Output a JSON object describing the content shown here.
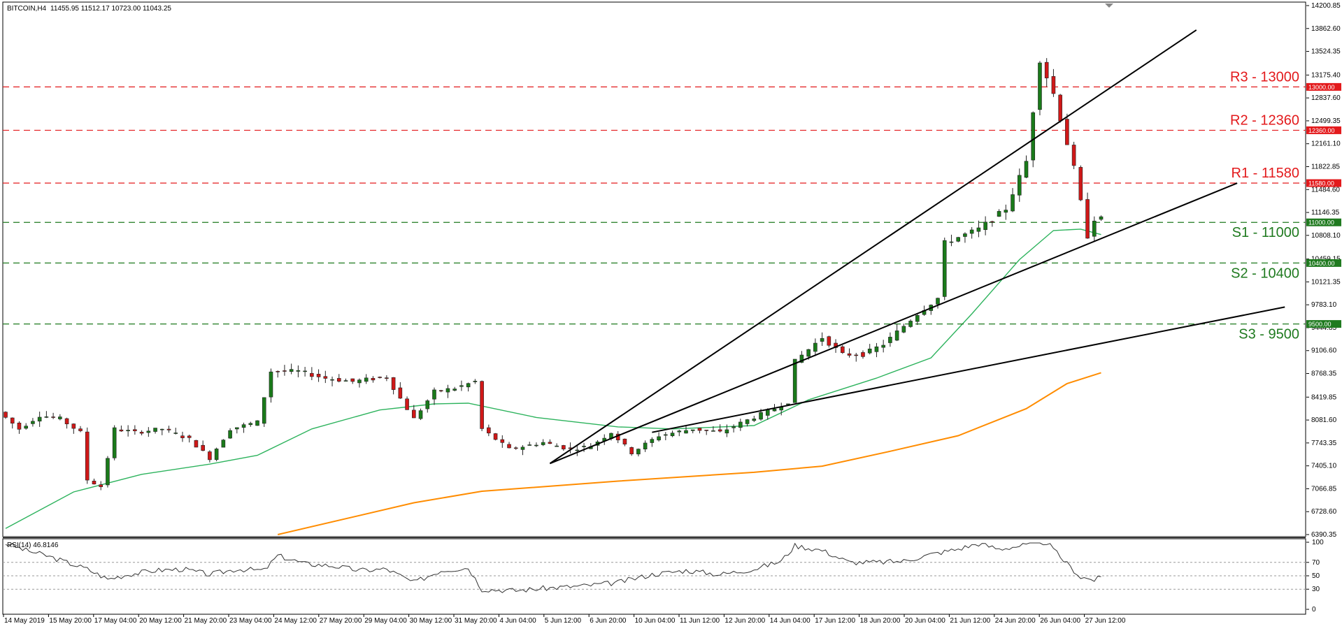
{
  "header": {
    "symbol": "BITCOIN,H4",
    "ohlc": "11455.95 11512.17 10723.00 11043.25"
  },
  "rsi_header": "RSI(14) 46.8146",
  "colors": {
    "resistance": "#e31a1c",
    "support": "#1f7a1f",
    "bull_candle": "#1a7a1a",
    "bear_candle": "#d01818",
    "ma_fast": "#2db35d",
    "ma_slow": "#ff8c00",
    "trendline": "#000000",
    "rsi_line": "#333333"
  },
  "chart_data": [
    {
      "type": "candlestick",
      "title": "",
      "price_axis": {
        "min": 6390.35,
        "max": 14200.85,
        "ticks": [
          "14200.85",
          "13862.60",
          "13524.35",
          "13175.40",
          "12837.60",
          "12499.35",
          "12161.10",
          "11822.85",
          "11484.60",
          "11146.35",
          "10808.10",
          "10459.15",
          "10121.35",
          "9783.10",
          "9444.85",
          "9106.60",
          "8768.35",
          "8419.85",
          "8081.60",
          "7743.35",
          "7405.10",
          "7066.85",
          "6728.60",
          "6390.35"
        ]
      },
      "time_axis_labels": [
        "14 May 2019",
        "15 May 20:00",
        "17 May 04:00",
        "20 May 12:00",
        "21 May 20:00",
        "23 May 04:00",
        "24 May 12:00",
        "27 May 20:00",
        "29 May 04:00",
        "30 May 12:00",
        "31 May 20:00",
        "4 Jun 04:00",
        "5 Jun 12:00",
        "6 Jun 20:00",
        "10 Jun 04:00",
        "11 Jun 12:00",
        "12 Jun 20:00",
        "14 Jun 04:00",
        "17 Jun 12:00",
        "18 Jun 20:00",
        "20 Jun 04:00",
        "21 Jun 12:00",
        "24 Jun 20:00",
        "26 Jun 04:00",
        "27 Jun 12:00"
      ],
      "price_path": [
        [
          0,
          8200
        ],
        [
          3,
          7950
        ],
        [
          6,
          8150
        ],
        [
          9,
          8100
        ],
        [
          12,
          7900
        ],
        [
          13,
          7200
        ],
        [
          15,
          7100
        ],
        [
          17,
          7950
        ],
        [
          20,
          7900
        ],
        [
          24,
          7950
        ],
        [
          28,
          7800
        ],
        [
          31,
          7520
        ],
        [
          34,
          7950
        ],
        [
          38,
          8050
        ],
        [
          40,
          8800
        ],
        [
          44,
          8800
        ],
        [
          48,
          8700
        ],
        [
          52,
          8650
        ],
        [
          57,
          8720
        ],
        [
          59,
          8400
        ],
        [
          61,
          8100
        ],
        [
          64,
          8500
        ],
        [
          67,
          8550
        ],
        [
          70,
          8650
        ],
        [
          71,
          7950
        ],
        [
          75,
          7650
        ],
        [
          80,
          7750
        ],
        [
          84,
          7650
        ],
        [
          87,
          7700
        ],
        [
          90,
          7900
        ],
        [
          93,
          7600
        ],
        [
          97,
          7850
        ],
        [
          102,
          7950
        ],
        [
          106,
          7900
        ],
        [
          110,
          8080
        ],
        [
          114,
          8250
        ],
        [
          116,
          8350
        ],
        [
          117,
          8950
        ],
        [
          121,
          9300
        ],
        [
          124,
          9050
        ],
        [
          127,
          9050
        ],
        [
          130,
          9200
        ],
        [
          135,
          9650
        ],
        [
          138,
          9880
        ],
        [
          139,
          10700
        ],
        [
          144,
          10900
        ],
        [
          148,
          11200
        ],
        [
          151,
          11900
        ],
        [
          153,
          13400
        ],
        [
          155,
          12900
        ],
        [
          158,
          11800
        ],
        [
          160,
          10800
        ],
        [
          161,
          11050
        ]
      ],
      "moving_averages": [
        {
          "period": "fast",
          "points": [
            [
              0,
              6480
            ],
            [
              10,
              7020
            ],
            [
              20,
              7280
            ],
            [
              30,
              7430
            ],
            [
              37,
              7560
            ],
            [
              45,
              7950
            ],
            [
              55,
              8230
            ],
            [
              63,
              8320
            ],
            [
              68,
              8330
            ],
            [
              78,
              8120
            ],
            [
              90,
              7980
            ],
            [
              98,
              7950
            ],
            [
              110,
              8000
            ],
            [
              118,
              8380
            ],
            [
              128,
              8700
            ],
            [
              136,
              9000
            ],
            [
              142,
              9650
            ],
            [
              149,
              10450
            ],
            [
              154,
              10880
            ],
            [
              158,
              10900
            ],
            [
              161,
              10820
            ]
          ]
        },
        {
          "period": "slow",
          "points": [
            [
              40,
              6390
            ],
            [
              60,
              6860
            ],
            [
              70,
              7030
            ],
            [
              90,
              7180
            ],
            [
              110,
              7310
            ],
            [
              120,
              7400
            ],
            [
              130,
              7620
            ],
            [
              140,
              7850
            ],
            [
              150,
              8250
            ],
            [
              156,
              8620
            ],
            [
              161,
              8780
            ]
          ]
        }
      ],
      "trendlines": [
        {
          "from": [
            80,
            7440
          ],
          "to": [
            175,
            13840
          ]
        },
        {
          "from": [
            80,
            7440
          ],
          "to": [
            181,
            11580
          ]
        },
        {
          "from": [
            95,
            7900
          ],
          "to": [
            188,
            9750
          ]
        }
      ],
      "levels": [
        {
          "kind": "resistance",
          "value": 13000,
          "label": "R3 - 13000",
          "tag": "13000.00"
        },
        {
          "kind": "resistance",
          "value": 12360,
          "label": "R2 - 12360",
          "tag": "12360.00"
        },
        {
          "kind": "resistance",
          "value": 11580,
          "label": "R1 - 11580",
          "tag": "11580.00"
        },
        {
          "kind": "support",
          "value": 11000,
          "label": "S1 - 11000",
          "tag": "11000.00"
        },
        {
          "kind": "support",
          "value": 10400,
          "label": "S2 - 10400",
          "tag": "10400.00"
        },
        {
          "kind": "support",
          "value": 9500,
          "label": "S3 - 9500",
          "tag": "9500.00"
        }
      ]
    },
    {
      "type": "line",
      "title": "",
      "rsi_axis": {
        "min": 0,
        "max": 100,
        "ticks": [
          "100",
          "70",
          "50",
          "30",
          "0"
        ],
        "levels": [
          70,
          50,
          30
        ]
      },
      "rsi_path": [
        [
          0,
          98
        ],
        [
          3,
          88
        ],
        [
          6,
          80
        ],
        [
          9,
          70
        ],
        [
          12,
          60
        ],
        [
          15,
          45
        ],
        [
          18,
          52
        ],
        [
          22,
          58
        ],
        [
          26,
          60
        ],
        [
          30,
          52
        ],
        [
          34,
          60
        ],
        [
          38,
          58
        ],
        [
          40,
          80
        ],
        [
          44,
          68
        ],
        [
          48,
          65
        ],
        [
          52,
          58
        ],
        [
          56,
          60
        ],
        [
          60,
          40
        ],
        [
          64,
          58
        ],
        [
          68,
          62
        ],
        [
          70,
          30
        ],
        [
          75,
          28
        ],
        [
          80,
          32
        ],
        [
          85,
          35
        ],
        [
          90,
          40
        ],
        [
          95,
          52
        ],
        [
          100,
          58
        ],
        [
          105,
          52
        ],
        [
          110,
          60
        ],
        [
          114,
          72
        ],
        [
          116,
          95
        ],
        [
          120,
          88
        ],
        [
          124,
          70
        ],
        [
          128,
          70
        ],
        [
          132,
          72
        ],
        [
          136,
          82
        ],
        [
          140,
          90
        ],
        [
          143,
          98
        ],
        [
          146,
          90
        ],
        [
          150,
          96
        ],
        [
          153,
          100
        ],
        [
          155,
          78
        ],
        [
          158,
          48
        ],
        [
          160,
          44
        ],
        [
          161,
          47
        ]
      ]
    }
  ]
}
